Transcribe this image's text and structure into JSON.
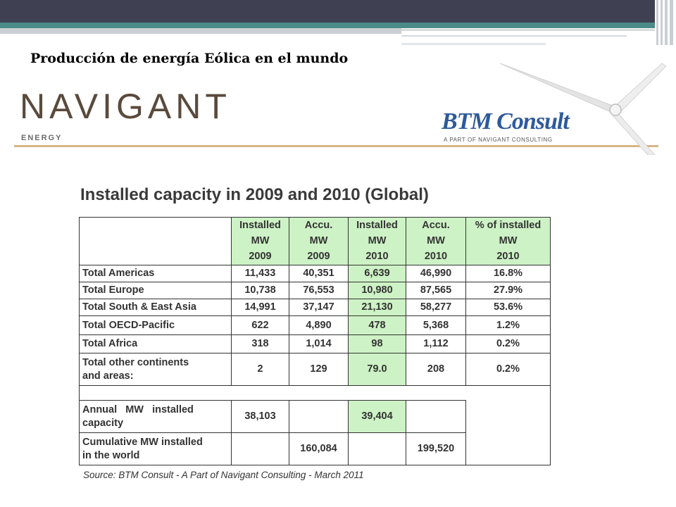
{
  "slide": {
    "title": "Producción de energía Eólica en el mundo"
  },
  "logos": {
    "navigant": "NAVIGANT",
    "navigant_sub": "ENERGY",
    "btm": "BTM Consult",
    "btm_sub": "A PART OF NAVIGANT CONSULTING",
    "brand_color_navigant": "#5a4a3c",
    "brand_color_btm": "#2d5a9a"
  },
  "table": {
    "heading": "Installed capacity in 2009 and 2010 (Global)",
    "columns": [
      {
        "line1": "Installed",
        "line2": "MW",
        "line3": "2009"
      },
      {
        "line1": "Accu.",
        "line2": "MW",
        "line3": "2009"
      },
      {
        "line1": "Installed",
        "line2": "MW",
        "line3": "2010"
      },
      {
        "line1": "Accu.",
        "line2": "MW",
        "line3": "2010"
      },
      {
        "line1": "% of installed",
        "line2": "MW",
        "line3": "2010"
      }
    ],
    "rows": [
      {
        "label": "Total Americas",
        "values": [
          "11,433",
          "40,351",
          "6,639",
          "46,990",
          "16.8%"
        ]
      },
      {
        "label": "Total Europe",
        "values": [
          "10,738",
          "76,553",
          "10,980",
          "87,565",
          "27.9%"
        ]
      },
      {
        "label": "Total South & East Asia",
        "values": [
          "14,991",
          "37,147",
          "21,130",
          "58,277",
          "53.6%"
        ]
      },
      {
        "label": "Total OECD-Pacific",
        "values": [
          "622",
          "4,890",
          "478",
          "5,368",
          "1.2%"
        ]
      },
      {
        "label": "Total Africa",
        "values": [
          "318",
          "1,014",
          "98",
          "1,112",
          "0.2%"
        ]
      },
      {
        "label_line1": "Total other continents",
        "label_line2": "and areas:",
        "values": [
          "2",
          "129",
          "79.0",
          "208",
          "0.2%"
        ]
      }
    ],
    "annual": {
      "label_line1": "Annual   MW   installed",
      "label_line2": "capacity",
      "values": [
        "38,103",
        "",
        "39,404",
        ""
      ]
    },
    "cumulative": {
      "label_line1": "Cumulative MW installed",
      "label_line2": "in the world",
      "values": [
        "",
        "160,084",
        "",
        "199,520"
      ]
    },
    "source": "Source: BTM Consult - A Part of Navigant Consulting - March 2011",
    "highlight_color": "#cdf2c5"
  }
}
